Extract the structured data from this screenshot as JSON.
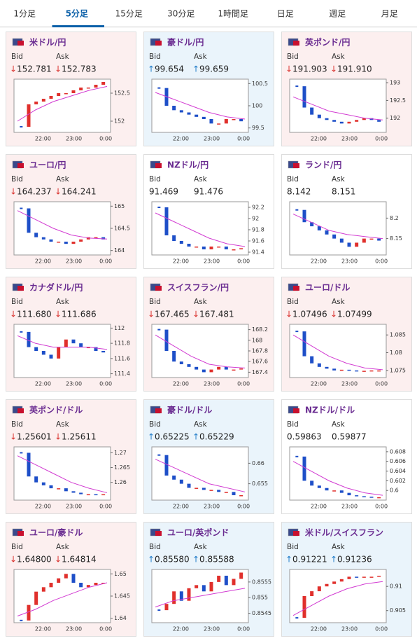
{
  "tabs": [
    "1分足",
    "5分足",
    "15分足",
    "30分足",
    "1時間足",
    "日足",
    "週足",
    "月足"
  ],
  "labels": {
    "bid": "Bid",
    "ask": "Ask"
  },
  "panels": [
    {
      "name": "米ドル/円",
      "dir": "↓",
      "bid": "152.781",
      "ask": "152.783",
      "chart": {
        "xticks": [
          "22:00",
          "23:00",
          "0:00"
        ],
        "ylim": [
          151.8,
          152.75
        ],
        "yticks": [
          152,
          152.5
        ],
        "close": [
          151.9,
          152.3,
          152.35,
          152.4,
          152.45,
          152.5,
          152.5,
          152.55,
          152.6,
          152.6,
          152.65,
          152.7
        ],
        "ma": [
          152.0,
          152.2,
          152.35,
          152.45,
          152.55,
          152.62
        ]
      }
    },
    {
      "name": "豪ドル/円",
      "dir": "↑",
      "bid": "99.654",
      "ask": "99.659",
      "chart": {
        "xticks": [
          "22:00",
          "23:00",
          "0:00"
        ],
        "ylim": [
          99.4,
          100.6
        ],
        "yticks": [
          99.5,
          100,
          100.5
        ],
        "close": [
          100.4,
          100.0,
          99.9,
          99.85,
          99.8,
          99.75,
          99.7,
          99.6,
          99.6,
          99.7,
          99.7,
          99.65
        ],
        "ma": [
          100.3,
          100.15,
          100.0,
          99.85,
          99.75,
          99.7
        ]
      }
    },
    {
      "name": "英ポンド/円",
      "dir": "↓",
      "bid": "191.903",
      "ask": "191.910",
      "chart": {
        "xticks": [
          "22:00",
          "23:00",
          "0:00"
        ],
        "ylim": [
          191.6,
          193.1
        ],
        "yticks": [
          192,
          192.5,
          193
        ],
        "close": [
          192.9,
          192.3,
          192.1,
          192.0,
          191.95,
          191.9,
          191.85,
          191.9,
          191.95,
          192.0,
          191.95,
          191.9
        ],
        "ma": [
          192.6,
          192.4,
          192.2,
          192.1,
          192.0,
          191.95
        ]
      }
    },
    {
      "name": "ユーロ/円",
      "dir": "↓",
      "bid": "164.237",
      "ask": "164.241",
      "chart": {
        "xticks": [
          "22:00",
          "23:00",
          "0:00"
        ],
        "ylim": [
          163.9,
          165.1
        ],
        "yticks": [
          164,
          164.5,
          165
        ],
        "close": [
          164.95,
          164.4,
          164.3,
          164.25,
          164.2,
          164.2,
          164.15,
          164.2,
          164.25,
          164.3,
          164.3,
          164.25
        ],
        "ma": [
          164.9,
          164.7,
          164.5,
          164.35,
          164.28,
          164.26
        ]
      }
    },
    {
      "name": "NZドル/円",
      "dir": "",
      "bid": "91.469",
      "ask": "91.476",
      "chart": {
        "xticks": [
          "22:00",
          "23:00",
          "0:00"
        ],
        "ylim": [
          91.35,
          92.3
        ],
        "yticks": [
          91.4,
          91.6,
          91.8,
          92,
          92.2
        ],
        "close": [
          92.2,
          91.7,
          91.6,
          91.55,
          91.5,
          91.5,
          91.45,
          91.5,
          91.5,
          91.45,
          91.45,
          91.47
        ],
        "ma": [
          92.1,
          91.95,
          91.8,
          91.65,
          91.55,
          91.5
        ]
      }
    },
    {
      "name": "ランド/円",
      "dir": "",
      "bid": "8.142",
      "ask": "8.151",
      "chart": {
        "xticks": [
          "22:00",
          "23:00",
          "0:00"
        ],
        "ylim": [
          8.11,
          8.24
        ],
        "yticks": [
          8.15,
          8.2
        ],
        "close": [
          8.22,
          8.19,
          8.18,
          8.17,
          8.16,
          8.15,
          8.14,
          8.13,
          8.14,
          8.15,
          8.15,
          8.145
        ],
        "ma": [
          8.21,
          8.19,
          8.17,
          8.16,
          8.155,
          8.15
        ]
      }
    },
    {
      "name": "カナダドル/円",
      "dir": "↓",
      "bid": "111.680",
      "ask": "111.686",
      "chart": {
        "xticks": [
          "22:00",
          "23:00",
          "0:00"
        ],
        "ylim": [
          111.35,
          112.05
        ],
        "yticks": [
          111.4,
          111.6,
          111.8,
          112
        ],
        "close": [
          111.95,
          111.75,
          111.7,
          111.65,
          111.6,
          111.75,
          111.85,
          111.8,
          111.75,
          111.75,
          111.7,
          111.68
        ],
        "ma": [
          111.9,
          111.8,
          111.75,
          111.75,
          111.75,
          111.72
        ]
      }
    },
    {
      "name": "スイスフラン/円",
      "dir": "↓",
      "bid": "167.465",
      "ask": "167.481",
      "chart": {
        "xticks": [
          "22:00",
          "23:00",
          "0:00"
        ],
        "ylim": [
          167.3,
          168.3
        ],
        "yticks": [
          167.4,
          167.6,
          167.8,
          168,
          168.2
        ],
        "close": [
          168.2,
          167.8,
          167.6,
          167.55,
          167.5,
          167.45,
          167.4,
          167.45,
          167.5,
          167.45,
          167.45,
          167.47
        ],
        "ma": [
          168.1,
          167.9,
          167.7,
          167.55,
          167.5,
          167.48
        ]
      }
    },
    {
      "name": "ユーロ/ドル",
      "dir": "↓",
      "bid": "1.07496",
      "ask": "1.07499",
      "chart": {
        "xticks": [
          "22:00",
          "23:00",
          "0:00"
        ],
        "ylim": [
          1.073,
          1.088
        ],
        "yticks": [
          1.075,
          1.08,
          1.085
        ],
        "close": [
          1.086,
          1.079,
          1.077,
          1.076,
          1.0755,
          1.075,
          1.0752,
          1.075,
          1.0748,
          1.0749,
          1.075,
          1.075
        ],
        "ma": [
          1.085,
          1.082,
          1.079,
          1.077,
          1.0757,
          1.0752
        ]
      }
    },
    {
      "name": "英ポンド/ドル",
      "dir": "↓",
      "bid": "1.25601",
      "ask": "1.25611",
      "chart": {
        "xticks": [
          "22:00",
          "23:00",
          "0:00"
        ],
        "ylim": [
          1.254,
          1.272
        ],
        "yticks": [
          1.26,
          1.265,
          1.27
        ],
        "close": [
          1.27,
          1.262,
          1.26,
          1.259,
          1.258,
          1.258,
          1.257,
          1.2565,
          1.256,
          1.256,
          1.2558,
          1.256
        ],
        "ma": [
          1.269,
          1.266,
          1.263,
          1.26,
          1.258,
          1.2565
        ]
      }
    },
    {
      "name": "豪ドル/ドル",
      "dir": "↑",
      "bid": "0.65225",
      "ask": "0.65229",
      "chart": {
        "xticks": [
          "22:00",
          "23:00",
          "0:00"
        ],
        "ylim": [
          0.651,
          0.664
        ],
        "yticks": [
          0.655,
          0.66
        ],
        "close": [
          0.662,
          0.657,
          0.656,
          0.655,
          0.654,
          0.654,
          0.6535,
          0.6535,
          0.653,
          0.653,
          0.6522,
          0.6522
        ],
        "ma": [
          0.661,
          0.659,
          0.657,
          0.655,
          0.654,
          0.653
        ]
      }
    },
    {
      "name": "NZドル/ドル",
      "dir": "",
      "bid": "0.59863",
      "ask": "0.59877",
      "chart": {
        "xticks": [
          "22:00",
          "23:00",
          "0:00"
        ],
        "ylim": [
          0.598,
          0.609
        ],
        "yticks": [
          0.6,
          0.602,
          0.604,
          0.606,
          0.608
        ],
        "close": [
          0.607,
          0.602,
          0.601,
          0.6005,
          0.6,
          0.6,
          0.5995,
          0.599,
          0.5988,
          0.5987,
          0.5986,
          0.5986
        ],
        "ma": [
          0.606,
          0.604,
          0.602,
          0.6005,
          0.5995,
          0.599
        ]
      }
    },
    {
      "name": "ユーロ/豪ドル",
      "dir": "↓",
      "bid": "1.64800",
      "ask": "1.64814",
      "chart": {
        "xticks": [
          "22:00",
          "23:00",
          "0:00"
        ],
        "ylim": [
          1.639,
          1.651
        ],
        "yticks": [
          1.64,
          1.645,
          1.65
        ],
        "close": [
          1.6395,
          1.643,
          1.646,
          1.647,
          1.648,
          1.649,
          1.65,
          1.648,
          1.647,
          1.6475,
          1.648,
          1.648
        ],
        "ma": [
          1.6405,
          1.642,
          1.644,
          1.6455,
          1.647,
          1.648
        ]
      }
    },
    {
      "name": "ユーロ/英ポンド",
      "dir": "↑",
      "bid": "0.85580",
      "ask": "0.85588",
      "chart": {
        "xticks": [
          "22:00",
          "23:00",
          "0:00"
        ],
        "ylim": [
          0.8542,
          0.8559
        ],
        "yticks": [
          0.8545,
          0.855,
          0.8555
        ],
        "close": [
          0.8546,
          0.8548,
          0.8552,
          0.8549,
          0.8553,
          0.8554,
          0.8552,
          0.8555,
          0.8557,
          0.8554,
          0.8556,
          0.8558
        ],
        "ma": [
          0.8547,
          0.8549,
          0.855,
          0.8551,
          0.8552,
          0.8553
        ]
      }
    },
    {
      "name": "米ドル/スイスフラン",
      "dir": "↑",
      "bid": "0.91221",
      "ask": "0.91236",
      "chart": {
        "xticks": [
          "22:00",
          "23:00",
          "0:00"
        ],
        "ylim": [
          0.9025,
          0.9135
        ],
        "yticks": [
          0.905,
          0.91
        ],
        "close": [
          0.9035,
          0.908,
          0.909,
          0.91,
          0.9105,
          0.911,
          0.9115,
          0.912,
          0.9118,
          0.912,
          0.912,
          0.9122
        ],
        "ma": [
          0.904,
          0.906,
          0.908,
          0.9095,
          0.9105,
          0.911
        ]
      }
    }
  ]
}
